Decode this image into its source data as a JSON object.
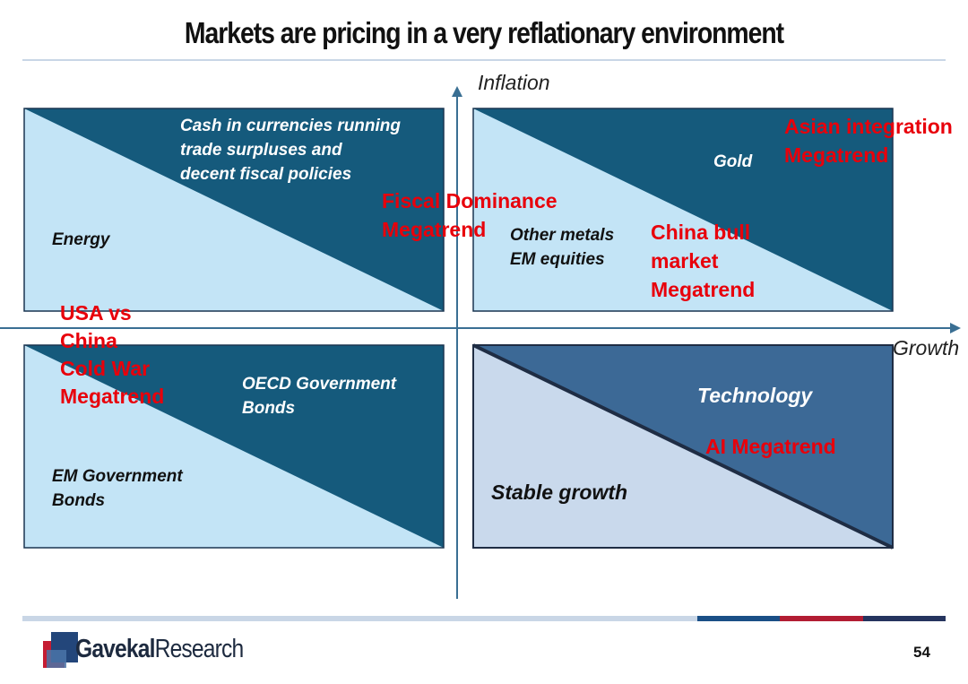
{
  "title": "Markets are pricing in a very reflationary environment",
  "axes": {
    "y_label": "Inflation",
    "x_label": "Growth"
  },
  "quadrants": {
    "top_left": {
      "upper_text": "Cash in currencies running\ntrade surpluses and\ndecent fiscal policies",
      "lower_text": "Energy"
    },
    "top_right": {
      "upper_text": "Gold",
      "lower_text": "Other metals\nEM equities"
    },
    "bottom_left": {
      "upper_text": "OECD Government\nBonds",
      "lower_text": "EM Government\nBonds"
    },
    "bottom_right": {
      "upper_text": "Technology",
      "lower_text": "Stable growth"
    }
  },
  "megatrends": {
    "asian_integration": "Asian integration\nMegatrend",
    "fiscal_dominance": "Fiscal Dominance\nMegatrend",
    "china_bull": "China bull\nmarket\nMegatrend",
    "usa_china": "USA vs\nChina\nCold War\nMegatrend",
    "ai": "AI Megatrend"
  },
  "footer": {
    "brand_bold": "Gavekal",
    "brand_regular": "Research",
    "page_number": "54"
  },
  "colors": {
    "dark_blue": "#155a7c",
    "light_blue": "#c3e4f6",
    "steel_blue": "#3c6996",
    "pale_blue": "#c9d9ec",
    "red": "#e8000b",
    "footer_light": "#c9d6e6",
    "footer_navy": "#1a4f86",
    "footer_red": "#b21d33",
    "footer_dark": "#25345e"
  }
}
